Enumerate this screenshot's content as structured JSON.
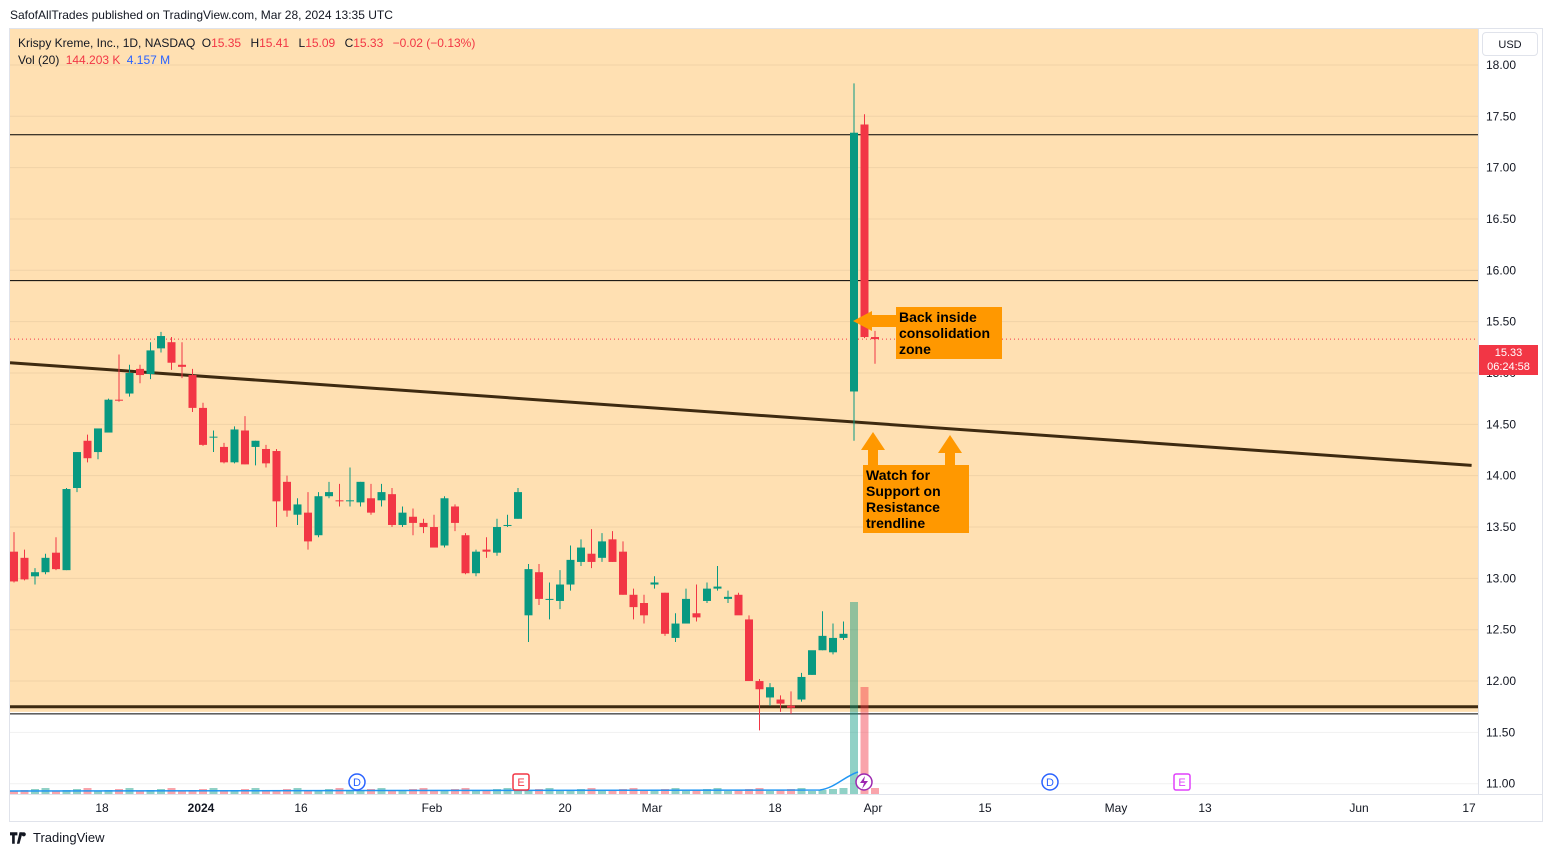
{
  "header": {
    "published": "SafofAllTrades published on TradingView.com, Mar 28, 2024 13:35 UTC"
  },
  "legend": {
    "symbol": "Krispy Kreme, Inc., 1D, NASDAQ",
    "o_label": "O",
    "o_value": "15.35",
    "h_label": "H",
    "h_value": "15.41",
    "l_label": "L",
    "l_value": "15.09",
    "c_label": "C",
    "c_value": "15.33",
    "change": "−0.02 (−0.13%)",
    "vol_label": "Vol (20)",
    "vol_value": "144.203 K",
    "vol_ma": "4.157 M"
  },
  "scale": {
    "currency": "USD",
    "last_price": "15.33",
    "countdown": "06:24:58"
  },
  "annotations": {
    "consolidation_note": "Back inside consolidation zone",
    "support_note": "Watch for Support on Resistance trendline"
  },
  "footer": {
    "brand": "TradingView"
  },
  "colors": {
    "up": "#089981",
    "down": "#f23645",
    "zone": "#ffe0b2",
    "annotation": "#ff9800",
    "trendline": "#3e2a10",
    "volume_ma": "#2196f3"
  },
  "chart_data": {
    "type": "candlestick",
    "ylim": [
      10.9,
      18.35
    ],
    "y_ticks": [
      18.0,
      17.5,
      17.0,
      16.5,
      16.0,
      15.5,
      15.0,
      14.5,
      14.0,
      13.5,
      13.0,
      12.5,
      12.0,
      11.5,
      11.0
    ],
    "x_tick_labels": [
      "18",
      "2024",
      "16",
      "Feb",
      "20",
      "Mar",
      "18",
      "Apr",
      "15",
      "May",
      "13",
      "Jun",
      "17"
    ],
    "grid": true,
    "zones": [
      {
        "from": 15.9,
        "to": 18.35
      },
      {
        "from": 11.7,
        "to": 15.9
      }
    ],
    "horizontal_lines": [
      17.32,
      15.9,
      11.75,
      11.68
    ],
    "trendline": {
      "start": [
        "2023-12-07",
        15.1
      ],
      "end": [
        "2024-04-29",
        14.1
      ]
    },
    "candles": [
      {
        "date": "2023-12-08",
        "o": 13.26,
        "h": 13.45,
        "l": 12.96,
        "c": 12.97
      },
      {
        "date": "2023-12-11",
        "o": 13.2,
        "h": 13.28,
        "l": 12.98,
        "c": 12.99
      },
      {
        "date": "2023-12-12",
        "o": 13.02,
        "h": 13.1,
        "l": 12.94,
        "c": 13.06
      },
      {
        "date": "2023-12-13",
        "o": 13.06,
        "h": 13.24,
        "l": 13.04,
        "c": 13.2
      },
      {
        "date": "2023-12-14",
        "o": 13.25,
        "h": 13.4,
        "l": 13.08,
        "c": 13.09
      },
      {
        "date": "2023-12-15",
        "o": 13.08,
        "h": 13.88,
        "l": 13.08,
        "c": 13.87
      },
      {
        "date": "2023-12-18",
        "o": 13.88,
        "h": 14.23,
        "l": 13.84,
        "c": 14.23
      },
      {
        "date": "2023-12-19",
        "o": 14.34,
        "h": 14.4,
        "l": 14.13,
        "c": 14.17
      },
      {
        "date": "2023-12-20",
        "o": 14.23,
        "h": 14.46,
        "l": 14.16,
        "c": 14.46
      },
      {
        "date": "2023-12-21",
        "o": 14.42,
        "h": 14.75,
        "l": 14.42,
        "c": 14.74
      },
      {
        "date": "2023-12-22",
        "o": 14.74,
        "h": 15.18,
        "l": 14.72,
        "c": 14.73
      },
      {
        "date": "2023-12-26",
        "o": 14.8,
        "h": 15.08,
        "l": 14.77,
        "c": 15.0
      },
      {
        "date": "2023-12-27",
        "o": 15.04,
        "h": 15.08,
        "l": 14.9,
        "c": 14.98
      },
      {
        "date": "2023-12-28",
        "o": 14.99,
        "h": 15.3,
        "l": 14.94,
        "c": 15.22
      },
      {
        "date": "2023-12-29",
        "o": 15.24,
        "h": 15.4,
        "l": 15.2,
        "c": 15.36
      },
      {
        "date": "2024-01-02",
        "o": 15.3,
        "h": 15.35,
        "l": 15.03,
        "c": 15.1
      },
      {
        "date": "2024-01-03",
        "o": 15.08,
        "h": 15.3,
        "l": 14.95,
        "c": 15.06
      },
      {
        "date": "2024-01-04",
        "o": 14.98,
        "h": 15.04,
        "l": 14.62,
        "c": 14.66
      },
      {
        "date": "2024-01-05",
        "o": 14.66,
        "h": 14.71,
        "l": 14.29,
        "c": 14.3
      },
      {
        "date": "2024-01-08",
        "o": 14.38,
        "h": 14.44,
        "l": 14.23,
        "c": 14.38
      },
      {
        "date": "2024-01-09",
        "o": 14.28,
        "h": 14.32,
        "l": 14.12,
        "c": 14.13
      },
      {
        "date": "2024-01-10",
        "o": 14.13,
        "h": 14.48,
        "l": 14.12,
        "c": 14.45
      },
      {
        "date": "2024-01-11",
        "o": 14.44,
        "h": 14.58,
        "l": 14.11,
        "c": 14.11
      },
      {
        "date": "2024-01-12",
        "o": 14.28,
        "h": 14.34,
        "l": 14.1,
        "c": 14.34
      },
      {
        "date": "2024-01-16",
        "o": 14.26,
        "h": 14.3,
        "l": 14.08,
        "c": 14.12
      },
      {
        "date": "2024-01-17",
        "o": 14.24,
        "h": 14.26,
        "l": 13.5,
        "c": 13.75
      },
      {
        "date": "2024-01-18",
        "o": 13.94,
        "h": 14.0,
        "l": 13.6,
        "c": 13.66
      },
      {
        "date": "2024-01-19",
        "o": 13.62,
        "h": 13.78,
        "l": 13.52,
        "c": 13.72
      },
      {
        "date": "2024-01-22",
        "o": 13.64,
        "h": 13.84,
        "l": 13.28,
        "c": 13.36
      },
      {
        "date": "2024-01-23",
        "o": 13.42,
        "h": 13.84,
        "l": 13.4,
        "c": 13.8
      },
      {
        "date": "2024-01-24",
        "o": 13.8,
        "h": 13.94,
        "l": 13.78,
        "c": 13.84
      },
      {
        "date": "2024-01-25",
        "o": 13.76,
        "h": 13.92,
        "l": 13.7,
        "c": 13.75
      },
      {
        "date": "2024-01-26",
        "o": 13.76,
        "h": 14.08,
        "l": 13.7,
        "c": 13.76
      },
      {
        "date": "2024-01-29",
        "o": 13.74,
        "h": 13.94,
        "l": 13.7,
        "c": 13.94
      },
      {
        "date": "2024-01-30",
        "o": 13.78,
        "h": 13.92,
        "l": 13.62,
        "c": 13.64
      },
      {
        "date": "2024-01-31",
        "o": 13.76,
        "h": 13.92,
        "l": 13.7,
        "c": 13.84
      },
      {
        "date": "2024-02-01",
        "o": 13.82,
        "h": 13.88,
        "l": 13.5,
        "c": 13.52
      },
      {
        "date": "2024-02-02",
        "o": 13.52,
        "h": 13.7,
        "l": 13.5,
        "c": 13.64
      },
      {
        "date": "2024-02-05",
        "o": 13.6,
        "h": 13.68,
        "l": 13.42,
        "c": 13.54
      },
      {
        "date": "2024-02-06",
        "o": 13.54,
        "h": 13.58,
        "l": 13.44,
        "c": 13.5
      },
      {
        "date": "2024-02-07",
        "o": 13.5,
        "h": 13.62,
        "l": 13.3,
        "c": 13.3
      },
      {
        "date": "2024-02-08",
        "o": 13.32,
        "h": 13.8,
        "l": 13.3,
        "c": 13.78
      },
      {
        "date": "2024-02-09",
        "o": 13.7,
        "h": 13.72,
        "l": 13.46,
        "c": 13.54
      },
      {
        "date": "2024-02-12",
        "o": 13.42,
        "h": 13.44,
        "l": 13.04,
        "c": 13.05
      },
      {
        "date": "2024-02-13",
        "o": 13.05,
        "h": 13.28,
        "l": 13.02,
        "c": 13.26
      },
      {
        "date": "2024-02-14",
        "o": 13.28,
        "h": 13.4,
        "l": 13.2,
        "c": 13.26
      },
      {
        "date": "2024-02-15",
        "o": 13.25,
        "h": 13.58,
        "l": 13.22,
        "c": 13.5
      },
      {
        "date": "2024-02-16",
        "o": 13.52,
        "h": 13.62,
        "l": 13.5,
        "c": 13.52
      },
      {
        "date": "2024-02-20",
        "o": 13.58,
        "h": 13.88,
        "l": 13.58,
        "c": 13.84
      },
      {
        "date": "2024-02-22",
        "o": 12.64,
        "h": 13.14,
        "l": 12.38,
        "c": 13.09
      },
      {
        "date": "2024-02-23",
        "o": 13.06,
        "h": 13.14,
        "l": 12.74,
        "c": 12.8
      },
      {
        "date": "2024-02-26",
        "o": 12.8,
        "h": 12.96,
        "l": 12.6,
        "c": 12.8
      },
      {
        "date": "2024-02-27",
        "o": 12.78,
        "h": 13.08,
        "l": 12.7,
        "c": 12.94
      },
      {
        "date": "2024-02-28",
        "o": 12.94,
        "h": 13.32,
        "l": 12.88,
        "c": 13.18
      },
      {
        "date": "2024-02-29",
        "o": 13.16,
        "h": 13.38,
        "l": 13.12,
        "c": 13.3
      },
      {
        "date": "2024-03-01",
        "o": 13.24,
        "h": 13.48,
        "l": 13.1,
        "c": 13.16
      },
      {
        "date": "2024-03-04",
        "o": 13.2,
        "h": 13.44,
        "l": 13.16,
        "c": 13.36
      },
      {
        "date": "2024-03-05",
        "o": 13.38,
        "h": 13.46,
        "l": 13.16,
        "c": 13.16
      },
      {
        "date": "2024-03-06",
        "o": 13.26,
        "h": 13.36,
        "l": 12.84,
        "c": 12.84
      },
      {
        "date": "2024-03-07",
        "o": 12.84,
        "h": 12.9,
        "l": 12.6,
        "c": 12.72
      },
      {
        "date": "2024-03-08",
        "o": 12.76,
        "h": 12.84,
        "l": 12.56,
        "c": 12.64
      },
      {
        "date": "2024-03-11",
        "o": 12.94,
        "h": 13.02,
        "l": 12.9,
        "c": 12.96
      },
      {
        "date": "2024-03-12",
        "o": 12.86,
        "h": 12.86,
        "l": 12.44,
        "c": 12.46
      },
      {
        "date": "2024-03-13",
        "o": 12.42,
        "h": 12.66,
        "l": 12.38,
        "c": 12.56
      },
      {
        "date": "2024-03-14",
        "o": 12.56,
        "h": 12.9,
        "l": 12.56,
        "c": 12.8
      },
      {
        "date": "2024-03-15",
        "o": 12.66,
        "h": 12.94,
        "l": 12.58,
        "c": 12.62
      },
      {
        "date": "2024-03-18",
        "o": 12.78,
        "h": 12.96,
        "l": 12.76,
        "c": 12.9
      },
      {
        "date": "2024-03-19",
        "o": 12.9,
        "h": 13.12,
        "l": 12.88,
        "c": 12.92
      },
      {
        "date": "2024-03-20",
        "o": 12.8,
        "h": 12.88,
        "l": 12.76,
        "c": 12.82
      },
      {
        "date": "2024-03-21",
        "o": 12.84,
        "h": 12.86,
        "l": 12.66,
        "c": 12.64
      },
      {
        "date": "2024-03-22",
        "o": 12.6,
        "h": 12.64,
        "l": 12.02,
        "c": 12.0
      },
      {
        "date": "2024-03-25",
        "o": 12.0,
        "h": 12.02,
        "l": 11.52,
        "c": 11.92
      },
      {
        "date": "2024-03-26",
        "o": 11.84,
        "h": 11.98,
        "l": 11.76,
        "c": 11.94
      },
      {
        "date": "2024-03-27",
        "o": 11.82,
        "h": 11.86,
        "l": 11.7,
        "c": 11.78
      },
      {
        "date": "2024-03-28",
        "o": 11.76,
        "h": 11.9,
        "l": 11.68,
        "c": 11.74
      },
      {
        "date": "2024-03-29",
        "o": 11.82,
        "h": 12.08,
        "l": 11.8,
        "c": 12.04
      },
      {
        "date": "2024-04-01",
        "o": 12.06,
        "h": 12.28,
        "l": 12.06,
        "c": 12.3
      },
      {
        "date": "2024-04-02",
        "o": 12.3,
        "h": 12.68,
        "l": 12.3,
        "c": 12.44
      },
      {
        "date": "2024-04-03",
        "o": 12.28,
        "h": 12.56,
        "l": 12.26,
        "c": 12.42
      },
      {
        "date": "2024-04-04",
        "o": 12.42,
        "h": 12.58,
        "l": 12.4,
        "c": 12.46
      },
      {
        "date": "2024-04-05",
        "o": 14.82,
        "h": 17.82,
        "l": 14.34,
        "c": 17.34
      },
      {
        "date": "2024-04-08",
        "o": 17.42,
        "h": 17.52,
        "l": 15.34,
        "c": 15.35
      },
      {
        "date": "2024-04-09",
        "o": 15.35,
        "h": 15.41,
        "l": 15.09,
        "c": 15.33
      }
    ],
    "volume_note": "Small volume bars with spike on the last three sessions"
  }
}
